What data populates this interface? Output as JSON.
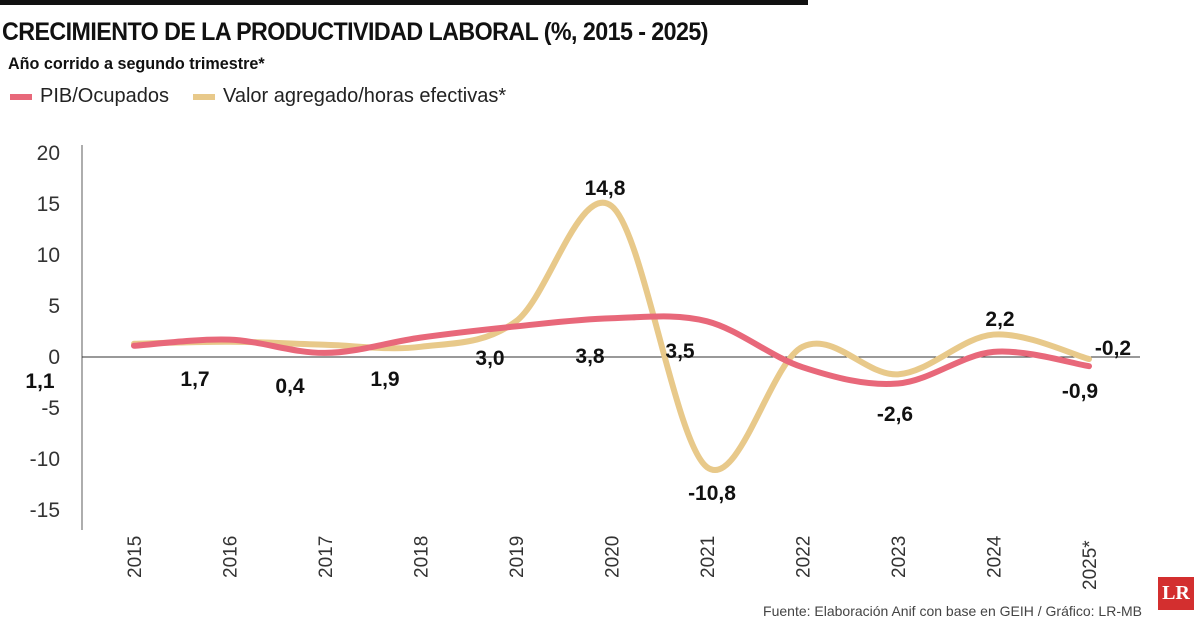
{
  "chart_data": {
    "type": "line",
    "title": "CRECIMIENTO DE LA PRODUCTIVIDAD LABORAL (%, 2015 - 2025)",
    "subtitle": "Año corrido a segundo trimestre*",
    "categories": [
      "2015",
      "2016",
      "2017",
      "2018",
      "2019",
      "2020",
      "2021",
      "2022",
      "2023",
      "2024",
      "2025*"
    ],
    "ylim": [
      -15,
      20
    ],
    "yticks": [
      20,
      15,
      10,
      5,
      0,
      -5,
      -10,
      -15
    ],
    "legend_placement": "top-left",
    "series": [
      {
        "name": "PIB/Ocupados",
        "color": "#e8687a",
        "values": [
          1.1,
          1.7,
          0.4,
          1.9,
          3.0,
          3.8,
          3.5,
          -1.0,
          -2.6,
          0.5,
          -0.9
        ],
        "labels": [
          "1,1",
          "1,7",
          "0,4",
          "1,9",
          "3,0",
          "3,8",
          "3,5",
          null,
          "-2,6",
          null,
          "-0,9"
        ]
      },
      {
        "name": "Valor agregado/horas efectivas*",
        "color": "#e8c98a",
        "values": [
          1.3,
          1.5,
          1.2,
          1.0,
          3.5,
          14.8,
          -10.8,
          1.0,
          -1.7,
          2.2,
          -0.2
        ],
        "labels": [
          null,
          null,
          null,
          null,
          null,
          "14,8",
          "-10,8",
          null,
          null,
          "2,2",
          "-0,2"
        ]
      }
    ]
  },
  "source": "Fuente: Elaboración Anif con base en GEIH / Gráfico: LR-MB",
  "logo": "LR"
}
